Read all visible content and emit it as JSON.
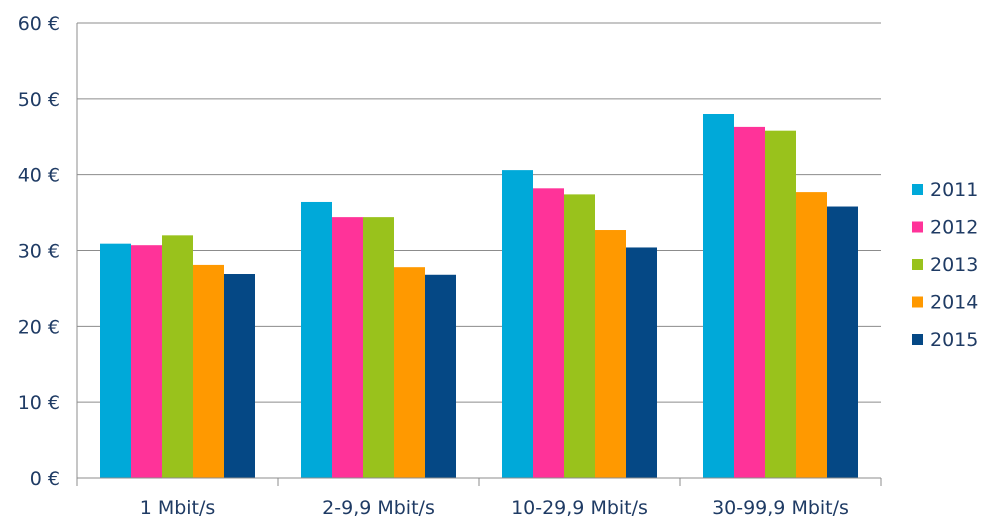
{
  "chart_data": {
    "type": "bar",
    "categories": [
      "1 Mbit/s",
      "2-9,9 Mbit/s",
      "10-29,9 Mbit/s",
      "30-99,9 Mbit/s"
    ],
    "series": [
      {
        "name": "2011",
        "color": "#00a9d9",
        "values": [
          30.9,
          36.4,
          40.6,
          48.0
        ]
      },
      {
        "name": "2012",
        "color": "#ff3399",
        "values": [
          30.7,
          34.4,
          38.2,
          46.3
        ]
      },
      {
        "name": "2013",
        "color": "#99c21c",
        "values": [
          32.0,
          34.4,
          37.4,
          45.8
        ]
      },
      {
        "name": "2014",
        "color": "#ff9900",
        "values": [
          28.1,
          27.8,
          32.7,
          37.7
        ]
      },
      {
        "name": "2015",
        "color": "#054885",
        "values": [
          26.9,
          26.8,
          30.4,
          35.8
        ]
      }
    ],
    "ylim": [
      0,
      60
    ],
    "yticks": [
      0,
      10,
      20,
      30,
      40,
      50,
      60
    ],
    "ytick_labels": [
      "0 €",
      "10 €",
      "20 €",
      "30 €",
      "40 €",
      "50 €",
      "60 €"
    ],
    "grid": true,
    "legend": "right",
    "title": "",
    "xlabel": "",
    "ylabel": ""
  }
}
